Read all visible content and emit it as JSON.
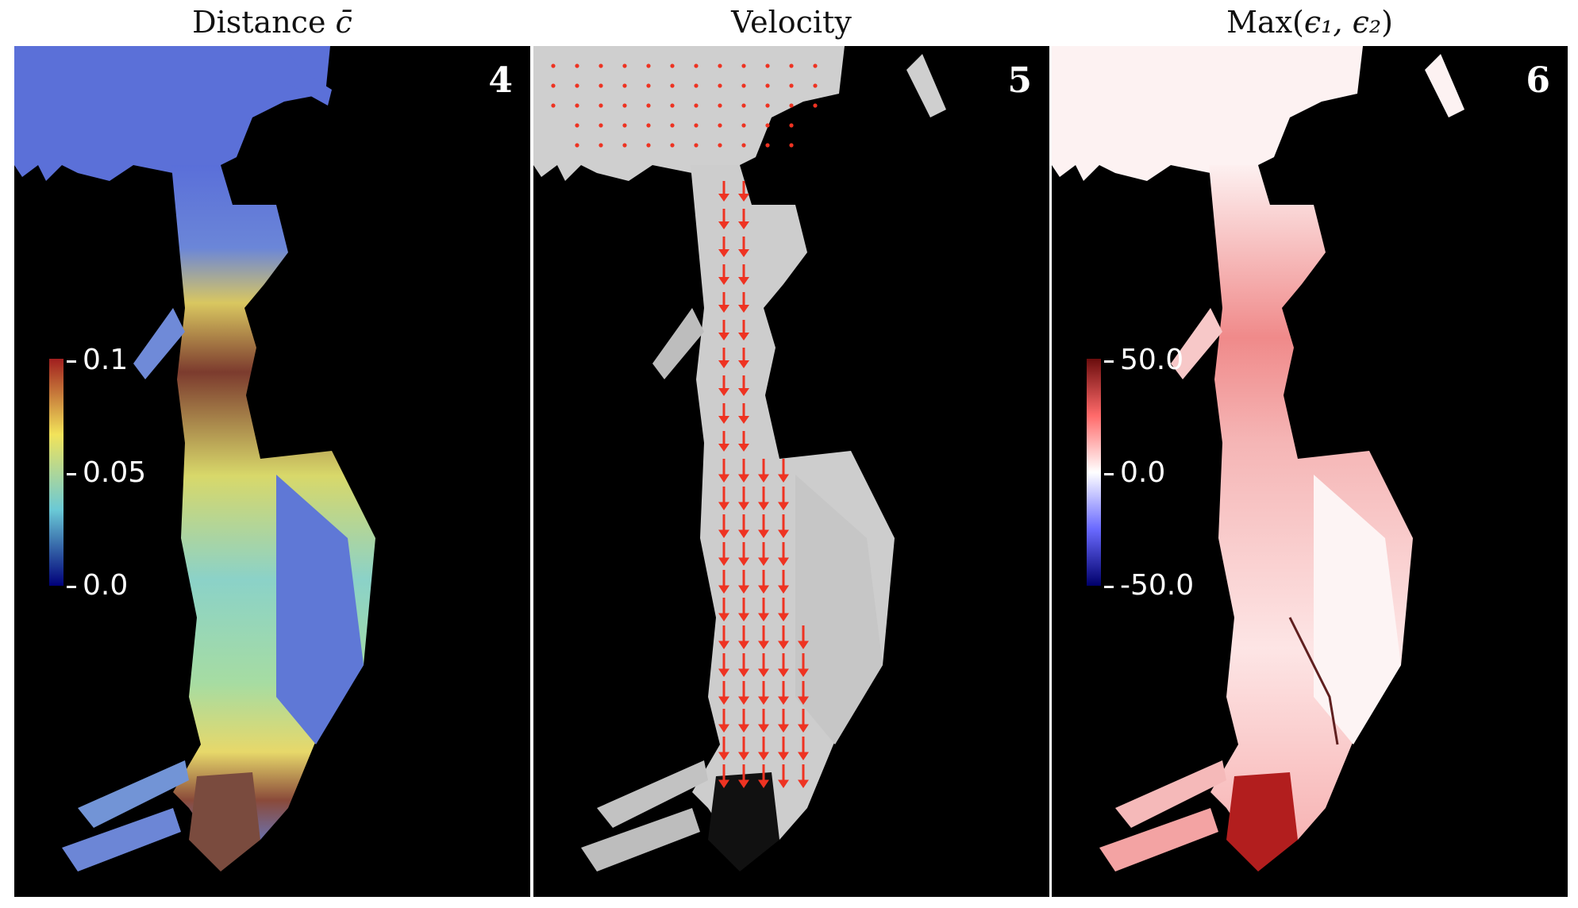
{
  "panels": [
    {
      "title_main": "Distance",
      "title_symbol": "c̄",
      "badge": "4",
      "colorbar": {
        "ticks": [
          "0.1",
          "0.05",
          "0.0"
        ],
        "colors": [
          "#a11f1f",
          "#f2e35a",
          "#6ac9d6",
          "#00007a"
        ]
      },
      "fill_colors": [
        "#5a6fd9",
        "#c8e86b",
        "#8a4a3a"
      ]
    },
    {
      "title_main": "Velocity",
      "badge": "5",
      "fill_colors": [
        "#cfcfcf"
      ],
      "arrow_color": "#ee3322"
    },
    {
      "title_main": "Max(",
      "title_args": "ϵ₁, ϵ₂",
      "title_close": ")",
      "badge": "6",
      "colorbar": {
        "ticks": [
          "50.0",
          "0.0",
          "-50.0"
        ],
        "colors": [
          "#6b0d0d",
          "#ff6a6a",
          "#ffffff",
          "#6a6aff",
          "#00006b"
        ]
      },
      "fill_colors": [
        "#fbe7e7",
        "#ff9a9a"
      ]
    }
  ]
}
